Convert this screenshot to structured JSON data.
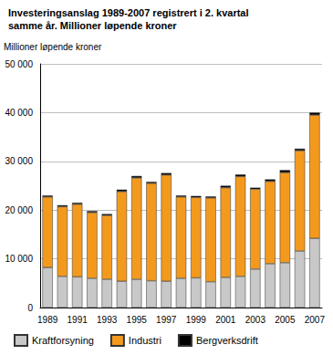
{
  "chart_data": {
    "type": "bar",
    "title": "Investeringsanslag 1989-2007 registrert i 2. kvartal\nsamme år. Millioner løpende kroner",
    "y_label": "Millioner løpende kroner",
    "categories": [
      "1989",
      null,
      "1991",
      null,
      "1993",
      null,
      "1995",
      null,
      "1997",
      null,
      "1999",
      null,
      "2001",
      null,
      "2003",
      null,
      "2005",
      null,
      "2007"
    ],
    "series": [
      {
        "name": "Kraftforsyning",
        "color": "#c8c8c8",
        "values": [
          8200,
          6400,
          6300,
          6000,
          5800,
          5400,
          5800,
          5500,
          5400,
          6000,
          6100,
          5300,
          6200,
          6400,
          7900,
          9000,
          9200,
          11600,
          14200
        ]
      },
      {
        "name": "Industri",
        "color": "#f39a1e",
        "values": [
          14500,
          14300,
          14900,
          13500,
          13100,
          18400,
          20800,
          20000,
          21800,
          16700,
          16500,
          17200,
          18400,
          20500,
          16400,
          16900,
          18500,
          20600,
          25300
        ]
      },
      {
        "name": "Bergverksdrift",
        "color": "#000000",
        "values": [
          300,
          300,
          300,
          300,
          300,
          400,
          400,
          300,
          400,
          300,
          300,
          300,
          400,
          400,
          300,
          400,
          500,
          400,
          500
        ]
      }
    ],
    "stacked": true,
    "ylim": [
      0,
      50000
    ],
    "yticks": [
      0,
      {
        "value": 10000,
        "label": "10 000"
      },
      {
        "value": 20000,
        "label": "20 000"
      },
      {
        "value": 30000,
        "label": "30 000"
      },
      {
        "value": 40000,
        "label": "40 000"
      },
      {
        "value": 50000,
        "label": "50 000"
      }
    ],
    "grid": true,
    "legend": "bottom"
  }
}
